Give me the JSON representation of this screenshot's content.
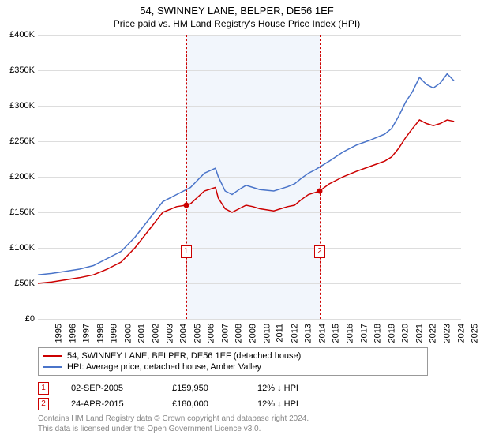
{
  "title": "54, SWINNEY LANE, BELPER, DE56 1EF",
  "subtitle": "Price paid vs. HM Land Registry's House Price Index (HPI)",
  "chart": {
    "type": "line",
    "background_color": "#ffffff",
    "grid_color": "#dddddd",
    "shade_color": "#f2f6fc",
    "x_min": 1995,
    "x_max": 2025.5,
    "x_ticks": [
      1995,
      1996,
      1997,
      1998,
      1999,
      2000,
      2001,
      2002,
      2003,
      2004,
      2005,
      2006,
      2007,
      2008,
      2009,
      2010,
      2011,
      2012,
      2013,
      2014,
      2015,
      2016,
      2017,
      2018,
      2019,
      2020,
      2021,
      2022,
      2023,
      2024,
      2025
    ],
    "y_min": 0,
    "y_max": 400000,
    "y_ticks": [
      0,
      50000,
      100000,
      150000,
      200000,
      250000,
      300000,
      350000,
      400000
    ],
    "y_tick_labels": [
      "£0",
      "£50K",
      "£100K",
      "£150K",
      "£200K",
      "£250K",
      "£300K",
      "£350K",
      "£400K"
    ],
    "shade_start": 2005.67,
    "shade_end": 2015.31,
    "series": [
      {
        "name": "price_paid",
        "color": "#cc0000",
        "width": 1.5,
        "points": [
          [
            1995,
            50000
          ],
          [
            1996,
            52000
          ],
          [
            1997,
            55000
          ],
          [
            1998,
            58000
          ],
          [
            1999,
            62000
          ],
          [
            2000,
            70000
          ],
          [
            2001,
            80000
          ],
          [
            2002,
            100000
          ],
          [
            2003,
            125000
          ],
          [
            2004,
            150000
          ],
          [
            2005,
            158000
          ],
          [
            2005.67,
            159950
          ],
          [
            2006,
            162000
          ],
          [
            2007,
            180000
          ],
          [
            2007.8,
            185000
          ],
          [
            2008,
            170000
          ],
          [
            2008.5,
            155000
          ],
          [
            2009,
            150000
          ],
          [
            2009.5,
            155000
          ],
          [
            2010,
            160000
          ],
          [
            2010.5,
            158000
          ],
          [
            2011,
            155000
          ],
          [
            2012,
            152000
          ],
          [
            2012.5,
            155000
          ],
          [
            2013,
            158000
          ],
          [
            2013.5,
            160000
          ],
          [
            2014,
            168000
          ],
          [
            2014.5,
            175000
          ],
          [
            2015,
            178000
          ],
          [
            2015.31,
            180000
          ],
          [
            2016,
            190000
          ],
          [
            2017,
            200000
          ],
          [
            2018,
            208000
          ],
          [
            2019,
            215000
          ],
          [
            2020,
            222000
          ],
          [
            2020.5,
            228000
          ],
          [
            2021,
            240000
          ],
          [
            2021.5,
            255000
          ],
          [
            2022,
            268000
          ],
          [
            2022.5,
            280000
          ],
          [
            2023,
            275000
          ],
          [
            2023.5,
            272000
          ],
          [
            2024,
            275000
          ],
          [
            2024.5,
            280000
          ],
          [
            2025,
            278000
          ]
        ]
      },
      {
        "name": "hpi",
        "color": "#4a74c9",
        "width": 1.5,
        "points": [
          [
            1995,
            62000
          ],
          [
            1996,
            64000
          ],
          [
            1997,
            67000
          ],
          [
            1998,
            70000
          ],
          [
            1999,
            75000
          ],
          [
            2000,
            85000
          ],
          [
            2001,
            95000
          ],
          [
            2002,
            115000
          ],
          [
            2003,
            140000
          ],
          [
            2004,
            165000
          ],
          [
            2005,
            175000
          ],
          [
            2006,
            185000
          ],
          [
            2007,
            205000
          ],
          [
            2007.8,
            212000
          ],
          [
            2008,
            200000
          ],
          [
            2008.5,
            180000
          ],
          [
            2009,
            175000
          ],
          [
            2009.5,
            182000
          ],
          [
            2010,
            188000
          ],
          [
            2010.5,
            185000
          ],
          [
            2011,
            182000
          ],
          [
            2012,
            180000
          ],
          [
            2012.5,
            183000
          ],
          [
            2013,
            186000
          ],
          [
            2013.5,
            190000
          ],
          [
            2014,
            198000
          ],
          [
            2014.5,
            205000
          ],
          [
            2015,
            210000
          ],
          [
            2016,
            222000
          ],
          [
            2017,
            235000
          ],
          [
            2018,
            245000
          ],
          [
            2019,
            252000
          ],
          [
            2020,
            260000
          ],
          [
            2020.5,
            268000
          ],
          [
            2021,
            285000
          ],
          [
            2021.5,
            305000
          ],
          [
            2022,
            320000
          ],
          [
            2022.5,
            340000
          ],
          [
            2023,
            330000
          ],
          [
            2023.5,
            325000
          ],
          [
            2024,
            332000
          ],
          [
            2024.5,
            345000
          ],
          [
            2025,
            335000
          ]
        ]
      }
    ],
    "sale_markers": [
      {
        "n": "1",
        "x": 2005.67,
        "y": 159950,
        "box_y": 95000,
        "color": "#cc0000"
      },
      {
        "n": "2",
        "x": 2015.31,
        "y": 180000,
        "box_y": 95000,
        "color": "#cc0000"
      }
    ]
  },
  "legend": {
    "items": [
      {
        "color": "#cc0000",
        "label": "54, SWINNEY LANE, BELPER, DE56 1EF (detached house)"
      },
      {
        "color": "#4a74c9",
        "label": "HPI: Average price, detached house, Amber Valley"
      }
    ]
  },
  "transactions": [
    {
      "n": "1",
      "date": "02-SEP-2005",
      "price": "£159,950",
      "hpi": "12% ↓ HPI"
    },
    {
      "n": "2",
      "date": "24-APR-2015",
      "price": "£180,000",
      "hpi": "12% ↓ HPI"
    }
  ],
  "footer": {
    "line1": "Contains HM Land Registry data © Crown copyright and database right 2024.",
    "line2": "This data is licensed under the Open Government Licence v3.0."
  }
}
